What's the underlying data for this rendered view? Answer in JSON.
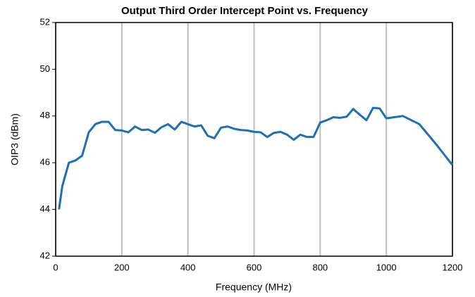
{
  "chart_data": {
    "type": "line",
    "title": "Output Third Order Intercept Point vs. Frequency",
    "x_label": "Frequency (MHz)",
    "y_label": "OIP3 (dBm)",
    "x": [
      10,
      20,
      40,
      60,
      80,
      100,
      120,
      140,
      160,
      180,
      200,
      220,
      240,
      260,
      280,
      300,
      320,
      340,
      360,
      380,
      400,
      420,
      440,
      460,
      480,
      500,
      520,
      540,
      560,
      580,
      600,
      620,
      640,
      660,
      680,
      700,
      720,
      740,
      760,
      780,
      800,
      820,
      840,
      860,
      880,
      900,
      920,
      940,
      960,
      980,
      1000,
      1050,
      1100,
      1150,
      1200
    ],
    "series": [
      {
        "name": "OIP3",
        "color": "#1f6fb5",
        "values": [
          44.0,
          45.0,
          46.0,
          46.1,
          46.3,
          47.3,
          47.65,
          47.75,
          47.75,
          47.4,
          47.38,
          47.3,
          47.55,
          47.4,
          47.42,
          47.28,
          47.52,
          47.65,
          47.42,
          47.75,
          47.65,
          47.55,
          47.6,
          47.15,
          47.05,
          47.5,
          47.55,
          47.45,
          47.4,
          47.38,
          47.32,
          47.3,
          47.1,
          47.28,
          47.32,
          47.2,
          46.98,
          47.2,
          47.1,
          47.1,
          47.72,
          47.82,
          47.95,
          47.92,
          47.97,
          48.3,
          48.05,
          47.82,
          48.35,
          48.32,
          47.9,
          48.0,
          47.65,
          46.8,
          45.9
        ]
      }
    ],
    "xlim": [
      0,
      1200
    ],
    "xticks": [
      0,
      200,
      400,
      600,
      800,
      1000,
      1200
    ],
    "ylim": [
      42,
      52
    ],
    "yticks": [
      42,
      44,
      46,
      48,
      50,
      52
    ],
    "grid": "x"
  }
}
